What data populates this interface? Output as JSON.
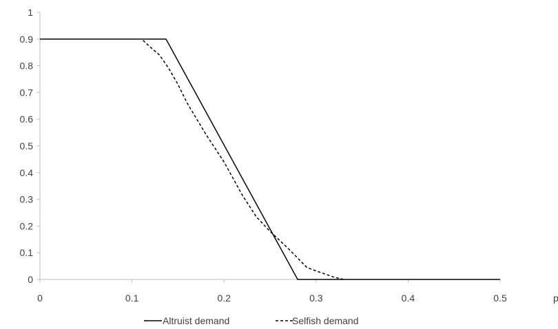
{
  "chart_data": {
    "type": "line",
    "title": "",
    "xlabel": "p",
    "ylabel": "",
    "xlim": [
      0,
      0.5
    ],
    "ylim": [
      0,
      1
    ],
    "x_ticks": [
      0,
      0.1,
      0.2,
      0.3,
      0.4,
      0.5
    ],
    "x_tick_labels": [
      "0",
      "0.1",
      "0.2",
      "0.3",
      "0.4",
      "0.5"
    ],
    "y_ticks": [
      0,
      0.1,
      0.2,
      0.3,
      0.4,
      0.5,
      0.6,
      0.7,
      0.8,
      0.9,
      1
    ],
    "y_tick_labels": [
      "0",
      "0.1",
      "0.2",
      "0.3",
      "0.4",
      "0.5",
      "0.6",
      "0.7",
      "0.8",
      "0.9",
      "1"
    ],
    "grid": false,
    "legend": {
      "position": "bottom"
    },
    "series": [
      {
        "name": "Altruist demand",
        "style": "solid",
        "color": "#000000",
        "points": [
          [
            0,
            0.9
          ],
          [
            0.137,
            0.9
          ],
          [
            0.28,
            0
          ],
          [
            0.5,
            0
          ]
        ]
      },
      {
        "name": "Selfish demand",
        "style": "dashed",
        "color": "#000000",
        "points": [
          [
            0.112,
            0.895
          ],
          [
            0.12,
            0.87
          ],
          [
            0.13,
            0.84
          ],
          [
            0.14,
            0.79
          ],
          [
            0.15,
            0.73
          ],
          [
            0.16,
            0.66
          ],
          [
            0.18,
            0.545
          ],
          [
            0.2,
            0.44
          ],
          [
            0.22,
            0.315
          ],
          [
            0.235,
            0.235
          ],
          [
            0.25,
            0.18
          ],
          [
            0.27,
            0.115
          ],
          [
            0.28,
            0.08
          ],
          [
            0.29,
            0.045
          ],
          [
            0.3,
            0.032
          ],
          [
            0.31,
            0.02
          ],
          [
            0.32,
            0.008
          ],
          [
            0.33,
            0
          ]
        ]
      }
    ]
  }
}
